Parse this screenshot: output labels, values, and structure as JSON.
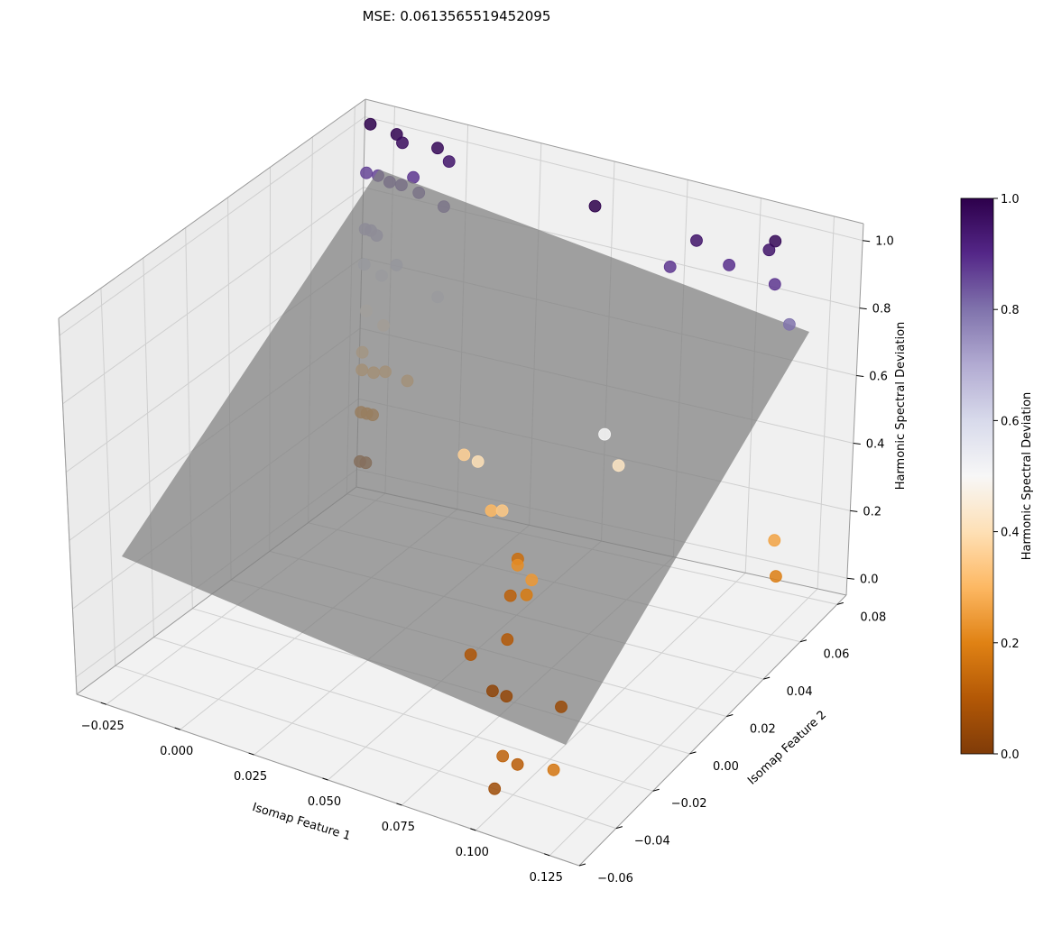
{
  "title": "MSE: 0.0613565519452095",
  "chart_data": {
    "type": "scatter",
    "title": "MSE: 0.0613565519452095",
    "xlabel": "Isomap Feature 1",
    "ylabel": "Isomap Feature 2",
    "zlabel": "Harmonic Spectral Deviation",
    "xlim": [
      -0.035,
      0.135
    ],
    "ylim": [
      -0.06,
      0.085
    ],
    "zlim": [
      -0.05,
      1.05
    ],
    "x_ticks": [
      -0.025,
      0.0,
      0.025,
      0.05,
      0.075,
      0.1,
      0.125
    ],
    "x_tick_labels": [
      "−0.025",
      "0.000",
      "0.025",
      "0.050",
      "0.075",
      "0.100",
      "0.125"
    ],
    "y_ticks": [
      -0.06,
      -0.04,
      -0.02,
      0.0,
      0.02,
      0.04,
      0.06,
      0.08
    ],
    "y_tick_labels": [
      "−0.06",
      "−0.04",
      "−0.02",
      "0.00",
      "0.02",
      "0.04",
      "0.06",
      "0.08"
    ],
    "z_ticks": [
      0.0,
      0.2,
      0.4,
      0.6,
      0.8,
      1.0
    ],
    "z_tick_labels": [
      "0.0",
      "0.2",
      "0.4",
      "0.6",
      "0.8",
      "1.0"
    ],
    "grid": true,
    "regression_plane": {
      "color": "#808080",
      "opacity": 0.72
    },
    "colorbar": {
      "label": "Harmonic Spectral Deviation",
      "colormap": "PuOr",
      "range": [
        0.0,
        1.0
      ],
      "ticks": [
        0.0,
        0.2,
        0.4,
        0.6,
        0.8,
        1.0
      ],
      "tick_labels": [
        "0.0",
        "0.2",
        "0.4",
        "0.6",
        "0.8",
        "1.0"
      ]
    },
    "points": [
      {
        "x": -0.031,
        "y": 0.082,
        "z": 1.0
      },
      {
        "x": -0.022,
        "y": 0.082,
        "z": 0.99
      },
      {
        "x": -0.02,
        "y": 0.082,
        "z": 0.97
      },
      {
        "x": -0.008,
        "y": 0.082,
        "z": 0.98
      },
      {
        "x": -0.004,
        "y": 0.082,
        "z": 0.95
      },
      {
        "x": -0.032,
        "y": 0.082,
        "z": 0.86
      },
      {
        "x": -0.028,
        "y": 0.082,
        "z": 0.86
      },
      {
        "x": -0.024,
        "y": 0.082,
        "z": 0.85
      },
      {
        "x": -0.02,
        "y": 0.082,
        "z": 0.85
      },
      {
        "x": -0.016,
        "y": 0.082,
        "z": 0.88
      },
      {
        "x": -0.014,
        "y": 0.082,
        "z": 0.84
      },
      {
        "x": -0.004,
        "y": 0.08,
        "z": 0.83
      },
      {
        "x": -0.032,
        "y": 0.082,
        "z": 0.7
      },
      {
        "x": -0.03,
        "y": 0.082,
        "z": 0.7
      },
      {
        "x": -0.028,
        "y": 0.082,
        "z": 0.69
      },
      {
        "x": -0.032,
        "y": 0.082,
        "z": 0.6
      },
      {
        "x": -0.026,
        "y": 0.082,
        "z": 0.58
      },
      {
        "x": -0.021,
        "y": 0.082,
        "z": 0.62
      },
      {
        "x": -0.004,
        "y": 0.078,
        "z": 0.58
      },
      {
        "x": -0.031,
        "y": 0.082,
        "z": 0.47
      },
      {
        "x": -0.025,
        "y": 0.082,
        "z": 0.44
      },
      {
        "x": -0.032,
        "y": 0.082,
        "z": 0.35
      },
      {
        "x": -0.032,
        "y": 0.082,
        "z": 0.3
      },
      {
        "x": -0.028,
        "y": 0.082,
        "z": 0.3
      },
      {
        "x": -0.024,
        "y": 0.082,
        "z": 0.31
      },
      {
        "x": -0.015,
        "y": 0.08,
        "z": 0.31
      },
      {
        "x": -0.032,
        "y": 0.082,
        "z": 0.18
      },
      {
        "x": -0.03,
        "y": 0.082,
        "z": 0.18
      },
      {
        "x": -0.028,
        "y": 0.082,
        "z": 0.18
      },
      {
        "x": -0.032,
        "y": 0.082,
        "z": 0.04
      },
      {
        "x": -0.03,
        "y": 0.082,
        "z": 0.04
      },
      {
        "x": 0.03,
        "y": 0.042,
        "z": 0.36
      },
      {
        "x": 0.04,
        "y": 0.034,
        "z": 0.4
      },
      {
        "x": 0.048,
        "y": 0.029,
        "z": 0.3
      },
      {
        "x": 0.055,
        "y": 0.024,
        "z": 0.34
      },
      {
        "x": 0.063,
        "y": 0.02,
        "z": 0.22
      },
      {
        "x": 0.054,
        "y": 0.034,
        "z": 0.15
      },
      {
        "x": 0.073,
        "y": 0.012,
        "z": 0.24
      },
      {
        "x": 0.06,
        "y": 0.021,
        "z": 0.12
      },
      {
        "x": 0.07,
        "y": 0.014,
        "z": 0.18
      },
      {
        "x": 0.07,
        "y": 0.004,
        "z": 0.1
      },
      {
        "x": 0.064,
        "y": -0.006,
        "z": 0.09
      },
      {
        "x": 0.074,
        "y": -0.01,
        "z": 0.03
      },
      {
        "x": 0.08,
        "y": -0.012,
        "z": 0.04
      },
      {
        "x": 0.098,
        "y": -0.011,
        "z": 0.05
      },
      {
        "x": 0.075,
        "y": 0.046,
        "z": 0.5
      },
      {
        "x": 0.08,
        "y": 0.046,
        "z": 0.42
      },
      {
        "x": 0.054,
        "y": 0.07,
        "z": 1.0
      },
      {
        "x": 0.086,
        "y": 0.074,
        "z": 0.95
      },
      {
        "x": 0.08,
        "y": 0.07,
        "z": 0.88
      },
      {
        "x": 0.096,
        "y": 0.076,
        "z": 0.89
      },
      {
        "x": 0.11,
        "y": 0.078,
        "z": 0.98
      },
      {
        "x": 0.108,
        "y": 0.078,
        "z": 0.95
      },
      {
        "x": 0.113,
        "y": 0.074,
        "z": 0.88
      },
      {
        "x": 0.121,
        "y": 0.07,
        "z": 0.8
      },
      {
        "x": 0.128,
        "y": 0.055,
        "z": 0.26
      },
      {
        "x": 0.132,
        "y": 0.05,
        "z": 0.19
      },
      {
        "x": 0.103,
        "y": -0.05,
        "z": 0.12
      },
      {
        "x": 0.108,
        "y": -0.05,
        "z": 0.11
      },
      {
        "x": 0.104,
        "y": -0.056,
        "z": 0.06
      },
      {
        "x": 0.124,
        "y": -0.056,
        "z": 0.17
      }
    ]
  }
}
